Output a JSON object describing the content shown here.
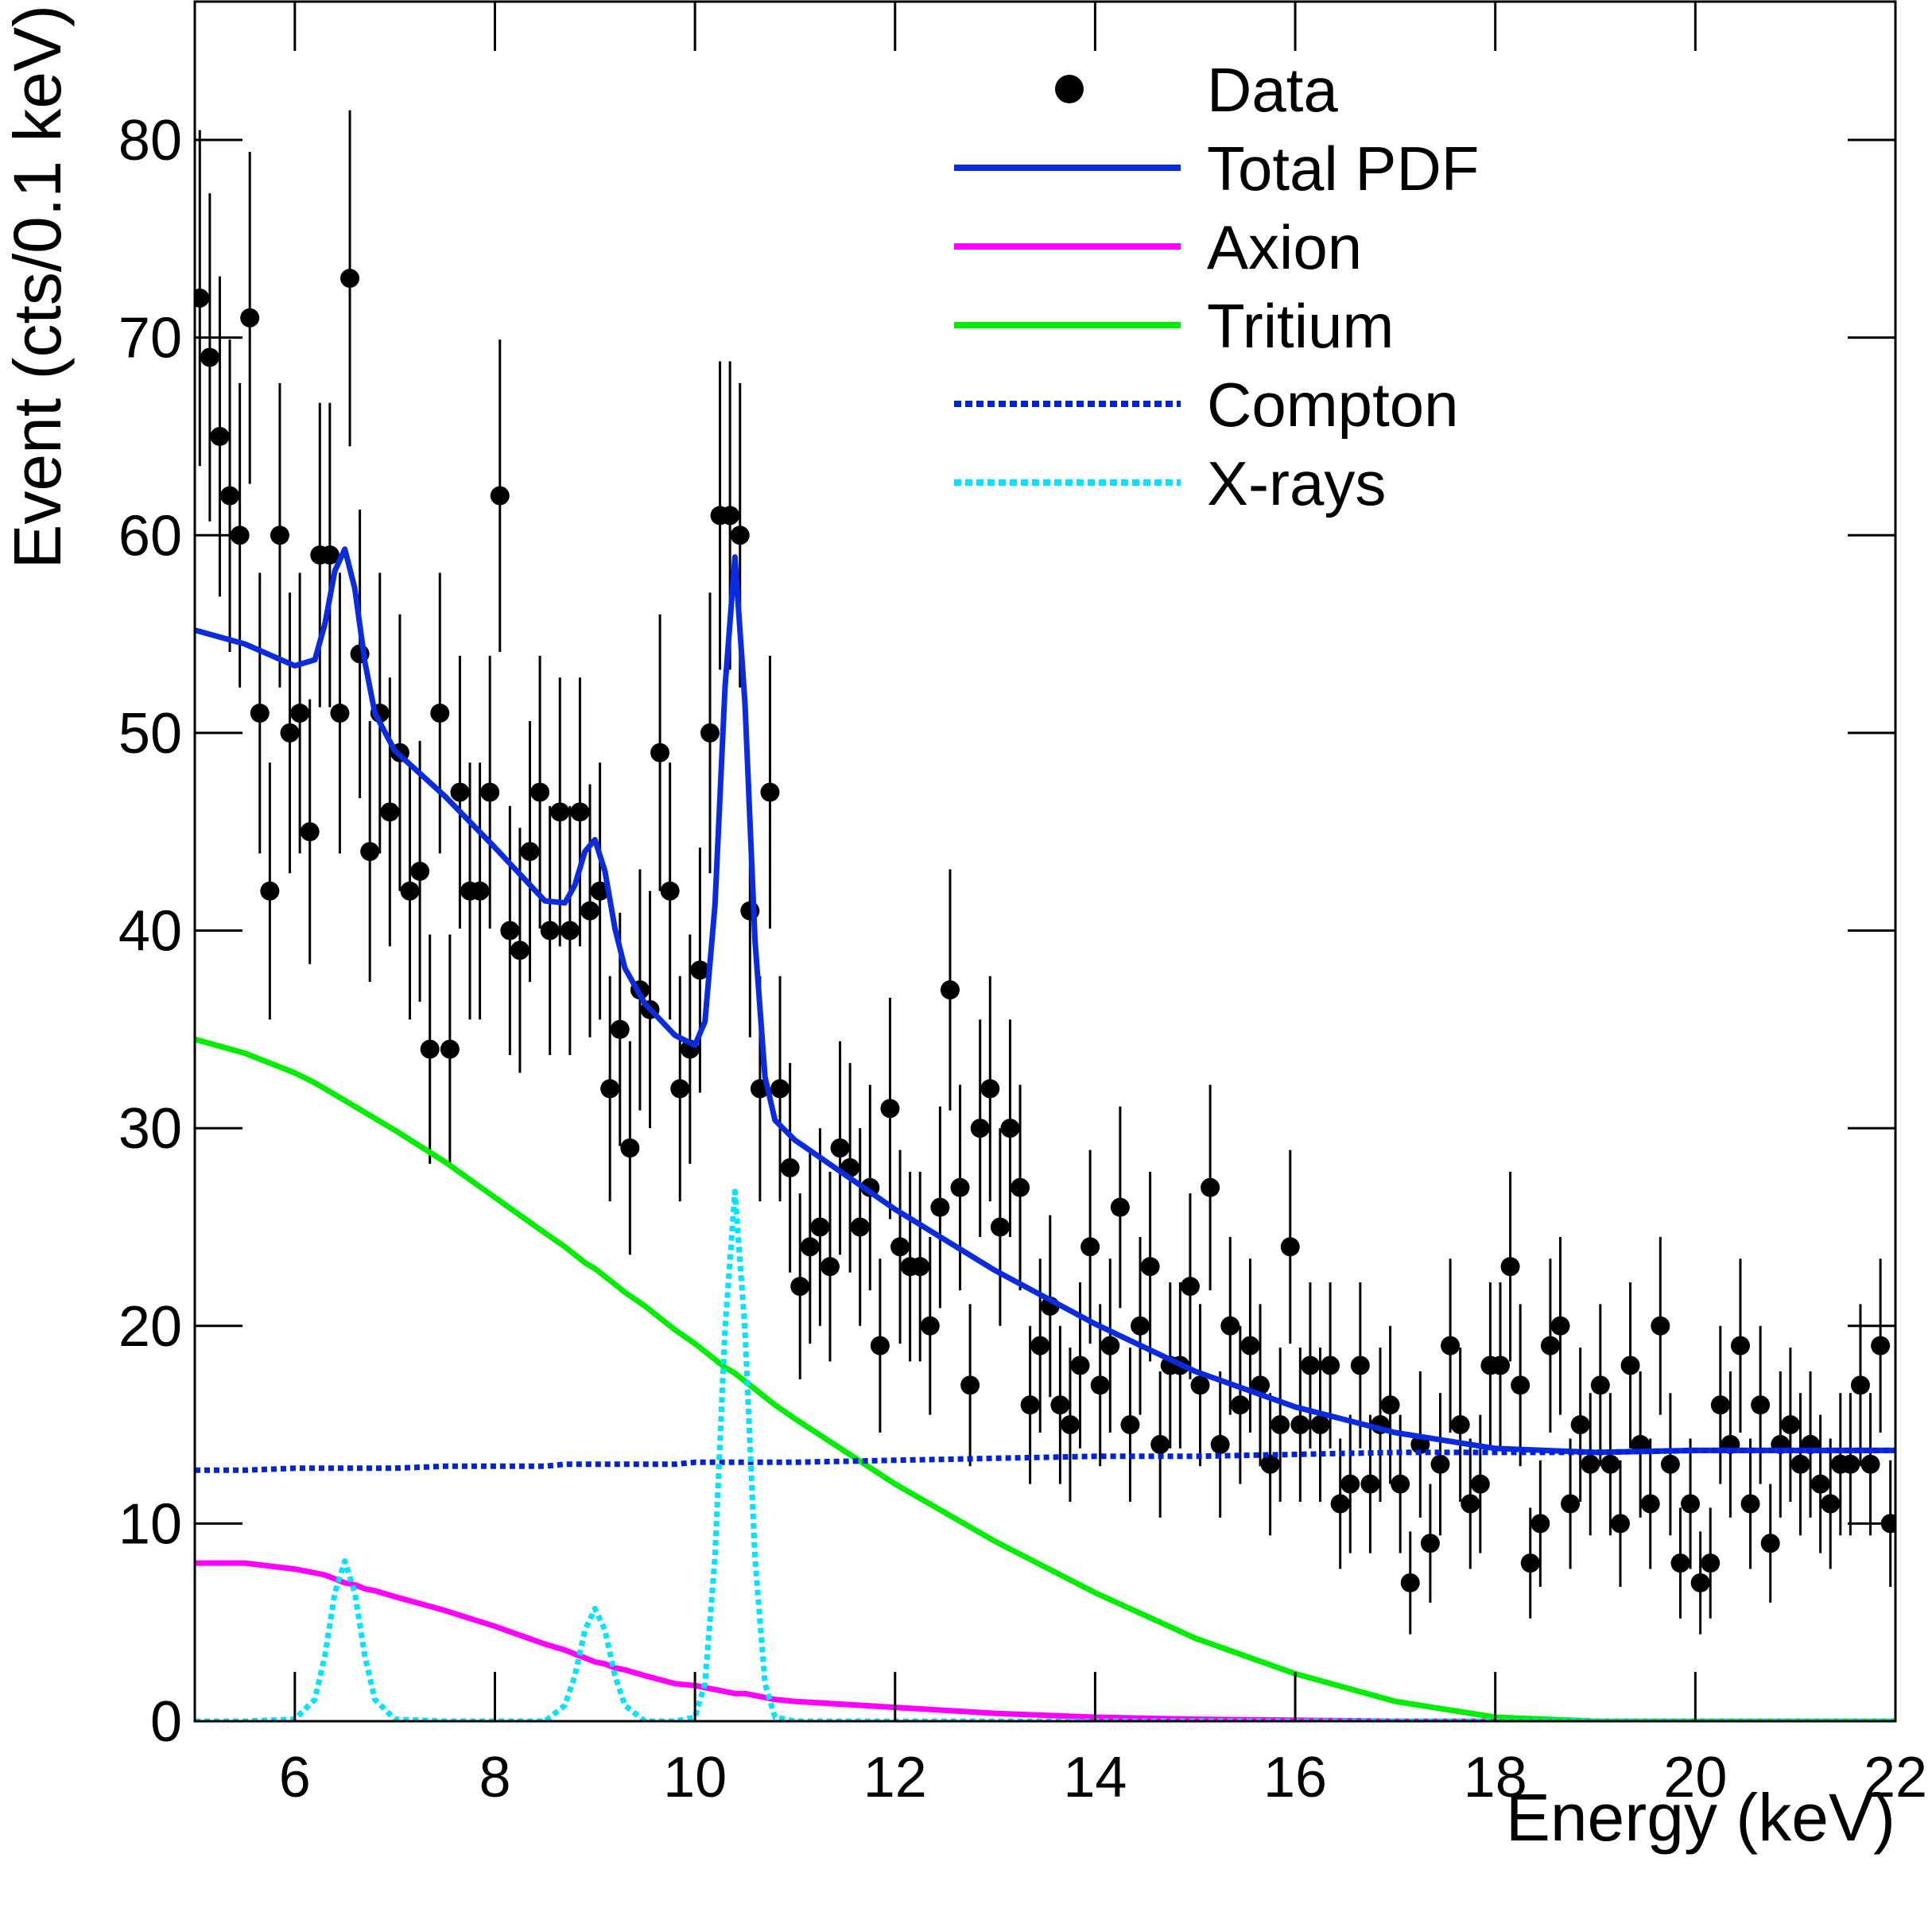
{
  "chart_data": {
    "type": "scatter",
    "xlabel": "Energy (keV)",
    "ylabel": "Event (cts/0.1 keV)",
    "xlim": [
      5,
      22
    ],
    "ylim": [
      0,
      87
    ],
    "xticks": [
      6,
      8,
      10,
      12,
      14,
      16,
      18,
      20,
      22
    ],
    "yticks": [
      0,
      10,
      20,
      30,
      40,
      50,
      60,
      70,
      80
    ],
    "legend": "top-right",
    "series": [
      {
        "name": "Data",
        "type": "scatter",
        "color": "#000000",
        "x": [
          5.05,
          5.15,
          5.25,
          5.35,
          5.45,
          5.55,
          5.65,
          5.75,
          5.85,
          5.95,
          6.05,
          6.15,
          6.25,
          6.35,
          6.45,
          6.55,
          6.65,
          6.75,
          6.85,
          6.95,
          7.05,
          7.15,
          7.25,
          7.35,
          7.45,
          7.55,
          7.65,
          7.75,
          7.85,
          7.95,
          8.05,
          8.15,
          8.25,
          8.35,
          8.45,
          8.55,
          8.65,
          8.75,
          8.85,
          8.95,
          9.05,
          9.15,
          9.25,
          9.35,
          9.45,
          9.55,
          9.65,
          9.75,
          9.85,
          9.95,
          10.05,
          10.15,
          10.25,
          10.35,
          10.45,
          10.55,
          10.65,
          10.75,
          10.85,
          10.95,
          11.05,
          11.15,
          11.25,
          11.35,
          11.45,
          11.55,
          11.65,
          11.75,
          11.85,
          11.95,
          12.05,
          12.15,
          12.25,
          12.35,
          12.45,
          12.55,
          12.65,
          12.75,
          12.85,
          12.95,
          13.05,
          13.15,
          13.25,
          13.35,
          13.45,
          13.55,
          13.65,
          13.75,
          13.85,
          13.95,
          14.05,
          14.15,
          14.25,
          14.35,
          14.45,
          14.55,
          14.65,
          14.75,
          14.85,
          14.95,
          15.05,
          15.15,
          15.25,
          15.35,
          15.45,
          15.55,
          15.65,
          15.75,
          15.85,
          15.95,
          16.05,
          16.15,
          16.25,
          16.35,
          16.45,
          16.55,
          16.65,
          16.75,
          16.85,
          16.95,
          17.05,
          17.15,
          17.25,
          17.35,
          17.45,
          17.55,
          17.65,
          17.75,
          17.85,
          17.95,
          18.05,
          18.15,
          18.25,
          18.35,
          18.45,
          18.55,
          18.65,
          18.75,
          18.85,
          18.95,
          19.05,
          19.15,
          19.25,
          19.35,
          19.45,
          19.55,
          19.65,
          19.75,
          19.85,
          19.95,
          20.05,
          20.15,
          20.25,
          20.35,
          20.45,
          20.55,
          20.65,
          20.75,
          20.85,
          20.95,
          21.05,
          21.15,
          21.25,
          21.35,
          21.45,
          21.55,
          21.65,
          21.75,
          21.85,
          21.95
        ],
        "values": [
          72,
          69,
          65,
          62,
          60,
          71,
          51,
          42,
          60,
          50,
          51,
          45,
          59,
          59,
          51,
          73,
          54,
          44,
          51,
          46,
          49,
          42,
          43,
          34,
          51,
          34,
          47,
          42,
          42,
          47,
          62,
          40,
          39,
          44,
          47,
          40,
          46,
          40,
          46,
          41,
          42,
          32,
          35,
          29,
          37,
          36,
          49,
          42,
          32,
          34,
          38,
          50,
          61,
          61,
          60,
          41,
          32,
          47,
          32,
          28,
          22,
          24,
          25,
          23,
          29,
          28,
          25,
          27,
          19,
          31,
          24,
          23,
          23,
          20,
          26,
          37,
          27,
          17,
          30,
          32,
          25,
          30,
          27,
          16,
          19,
          21,
          16,
          15,
          18,
          24,
          17,
          19,
          26,
          15,
          20,
          23,
          14,
          18,
          18,
          22,
          17,
          27,
          14,
          20,
          16,
          19,
          17,
          13,
          15,
          24,
          15,
          18,
          15,
          18,
          11,
          12,
          18,
          12,
          15,
          16,
          12,
          7,
          14,
          9,
          13,
          19,
          15,
          11,
          12,
          18,
          18,
          23,
          17,
          8,
          10,
          19,
          20,
          11,
          15,
          13,
          17,
          13,
          10,
          18,
          14,
          11,
          20,
          13,
          8,
          11,
          7,
          8,
          16,
          14,
          19,
          11,
          16,
          9,
          14,
          15,
          13,
          14,
          12,
          11,
          13,
          13,
          17,
          13,
          19,
          10
        ],
        "errors": [
          8.5,
          8.3,
          8.1,
          7.9,
          7.7,
          8.4,
          7.1,
          6.5,
          7.7,
          7.1,
          7.1,
          6.7,
          7.7,
          7.7,
          7.1,
          8.5,
          7.3,
          6.6,
          7.1,
          6.8,
          7.0,
          6.5,
          6.6,
          5.8,
          7.1,
          5.8,
          6.9,
          6.5,
          6.5,
          6.9,
          7.9,
          6.3,
          6.2,
          6.6,
          6.9,
          6.3,
          6.8,
          6.3,
          6.8,
          6.4,
          6.5,
          5.7,
          5.9,
          5.4,
          6.1,
          6.0,
          7.0,
          6.5,
          5.7,
          5.8,
          6.2,
          7.1,
          7.8,
          7.8,
          7.7,
          6.4,
          5.7,
          6.9,
          5.7,
          5.3,
          4.7,
          4.9,
          5.0,
          4.8,
          5.4,
          5.3,
          5.0,
          5.2,
          4.4,
          5.6,
          4.9,
          4.8,
          4.8,
          4.5,
          5.1,
          6.1,
          5.2,
          4.1,
          5.5,
          5.7,
          5.0,
          5.5,
          5.2,
          4.0,
          4.4,
          4.6,
          4.0,
          3.9,
          4.2,
          4.9,
          4.1,
          4.4,
          5.1,
          3.9,
          4.5,
          4.8,
          3.7,
          4.2,
          4.2,
          4.7,
          4.1,
          5.2,
          3.7,
          4.5,
          4.0,
          4.4,
          4.1,
          3.6,
          3.9,
          4.9,
          3.9,
          4.2,
          3.9,
          4.2,
          3.3,
          3.5,
          4.2,
          3.5,
          3.9,
          4.0,
          3.5,
          2.6,
          3.7,
          3.0,
          3.6,
          4.4,
          3.9,
          3.3,
          3.5,
          4.2,
          4.2,
          4.8,
          4.1,
          2.8,
          3.2,
          4.4,
          4.5,
          3.3,
          3.9,
          3.6,
          4.1,
          3.6,
          3.2,
          4.2,
          3.7,
          3.3,
          4.5,
          3.6,
          2.8,
          3.3,
          2.6,
          2.8,
          4.0,
          3.7,
          4.4,
          3.3,
          4.0,
          3.0,
          3.7,
          3.9,
          3.6,
          3.7,
          3.5,
          3.3,
          3.6,
          3.6,
          4.1,
          3.6,
          4.4,
          3.2
        ]
      },
      {
        "name": "Total PDF",
        "type": "line",
        "color": "#0a2be0",
        "dash": false,
        "x": [
          5,
          5.5,
          6,
          6.2,
          6.3,
          6.4,
          6.5,
          6.6,
          6.7,
          6.8,
          7,
          7.5,
          8,
          8.5,
          8.7,
          8.8,
          8.9,
          9,
          9.1,
          9.2,
          9.3,
          9.5,
          9.8,
          10,
          10.1,
          10.2,
          10.3,
          10.4,
          10.5,
          10.6,
          10.7,
          10.8,
          11,
          12,
          13,
          14,
          15,
          16,
          17,
          18,
          19,
          20,
          21,
          22
        ],
        "values": [
          55.2,
          54.5,
          53.4,
          53.7,
          55.5,
          58.2,
          59.3,
          57.3,
          53.6,
          51.0,
          49.1,
          46.8,
          44.2,
          41.5,
          41.4,
          42.3,
          44.0,
          44.6,
          43.0,
          40.1,
          38.1,
          36.3,
          34.7,
          34.2,
          35.4,
          41.3,
          52.3,
          58.9,
          51.5,
          39.5,
          32.6,
          30.4,
          29.4,
          25.9,
          22.8,
          20.1,
          17.7,
          15.9,
          14.6,
          13.8,
          13.6,
          13.7,
          13.7,
          13.7
        ]
      },
      {
        "name": "Axion",
        "type": "line",
        "color": "#ff00ff",
        "dash": false,
        "x": [
          5,
          5.5,
          6,
          6.2,
          6.3,
          6.4,
          6.5,
          6.6,
          6.7,
          6.8,
          7,
          7.5,
          8,
          8.5,
          8.7,
          8.8,
          8.9,
          9,
          9.1,
          9.2,
          9.3,
          9.5,
          9.8,
          10,
          10.1,
          10.2,
          10.3,
          10.4,
          10.5,
          10.6,
          10.7,
          10.8,
          11,
          12,
          13,
          14,
          15,
          16,
          17,
          18,
          19,
          20,
          21,
          22
        ],
        "values": [
          8.0,
          8.0,
          7.7,
          7.5,
          7.4,
          7.2,
          7.0,
          6.9,
          6.7,
          6.6,
          6.3,
          5.6,
          4.8,
          3.9,
          3.6,
          3.4,
          3.2,
          3.0,
          2.9,
          2.7,
          2.6,
          2.3,
          1.9,
          1.8,
          1.7,
          1.6,
          1.5,
          1.4,
          1.4,
          1.3,
          1.2,
          1.1,
          1.0,
          0.7,
          0.4,
          0.2,
          0.1,
          0.05,
          0,
          0,
          0,
          0,
          0,
          0
        ]
      },
      {
        "name": "Tritium",
        "type": "line",
        "color": "#00ee00",
        "dash": false,
        "x": [
          5,
          5.5,
          6,
          6.2,
          6.3,
          6.4,
          6.5,
          6.6,
          6.7,
          6.8,
          7,
          7.5,
          8,
          8.5,
          8.7,
          8.8,
          8.9,
          9,
          9.1,
          9.2,
          9.3,
          9.5,
          9.8,
          10,
          10.1,
          10.2,
          10.3,
          10.4,
          10.5,
          10.6,
          10.7,
          10.8,
          11,
          12,
          13,
          14,
          15,
          16,
          17,
          18,
          19,
          20,
          21,
          22
        ],
        "values": [
          34.5,
          33.8,
          32.8,
          32.3,
          32.0,
          31.7,
          31.4,
          31.1,
          30.8,
          30.5,
          29.9,
          28.3,
          26.5,
          24.7,
          24.0,
          23.6,
          23.2,
          22.9,
          22.5,
          22.1,
          21.7,
          21.0,
          19.8,
          19.1,
          18.7,
          18.3,
          17.9,
          17.6,
          17.2,
          16.8,
          16.4,
          16.0,
          15.3,
          12.0,
          9.1,
          6.5,
          4.2,
          2.4,
          1.0,
          0.2,
          0,
          0,
          0,
          0
        ]
      },
      {
        "name": "Compton",
        "type": "line",
        "color": "#0022dd",
        "dash": true,
        "x": [
          5,
          5.5,
          6,
          6.2,
          6.3,
          6.4,
          6.5,
          6.6,
          6.7,
          6.8,
          7,
          7.5,
          8,
          8.5,
          8.7,
          8.8,
          8.9,
          9,
          9.1,
          9.2,
          9.3,
          9.5,
          9.8,
          10,
          10.1,
          10.2,
          10.3,
          10.4,
          10.5,
          10.6,
          10.7,
          10.8,
          11,
          12,
          13,
          14,
          15,
          16,
          17,
          18,
          19,
          20,
          21,
          22
        ],
        "values": [
          12.7,
          12.7,
          12.8,
          12.8,
          12.8,
          12.8,
          12.8,
          12.8,
          12.8,
          12.8,
          12.8,
          12.9,
          12.9,
          12.9,
          13.0,
          13.0,
          13.0,
          13.0,
          13.0,
          13.0,
          13.0,
          13.0,
          13.0,
          13.1,
          13.1,
          13.1,
          13.1,
          13.1,
          13.1,
          13.1,
          13.1,
          13.1,
          13.1,
          13.2,
          13.3,
          13.4,
          13.4,
          13.5,
          13.6,
          13.6,
          13.6,
          13.7,
          13.7,
          13.7
        ]
      },
      {
        "name": "X-rays",
        "type": "line",
        "color": "#00e5ff",
        "dash": true,
        "x": [
          5,
          5.5,
          6,
          6.2,
          6.3,
          6.4,
          6.5,
          6.6,
          6.7,
          6.8,
          7,
          7.5,
          8,
          8.5,
          8.7,
          8.8,
          8.9,
          9,
          9.1,
          9.2,
          9.3,
          9.5,
          9.8,
          10,
          10.1,
          10.2,
          10.3,
          10.4,
          10.5,
          10.6,
          10.7,
          10.8,
          11,
          12,
          13,
          14,
          15,
          16,
          17,
          18,
          19,
          20,
          21,
          22
        ],
        "values": [
          0,
          0,
          0.1,
          1.1,
          3.3,
          6.5,
          8.1,
          6.5,
          3.3,
          1.1,
          0.1,
          0,
          0,
          0,
          0.8,
          2.3,
          4.6,
          5.7,
          4.6,
          2.3,
          0.8,
          0,
          0,
          0.2,
          1.9,
          8.3,
          19.8,
          26.8,
          19.8,
          8.3,
          1.9,
          0.2,
          0,
          0,
          0,
          0,
          0,
          0,
          0,
          0,
          0,
          0,
          0,
          0
        ]
      }
    ]
  }
}
